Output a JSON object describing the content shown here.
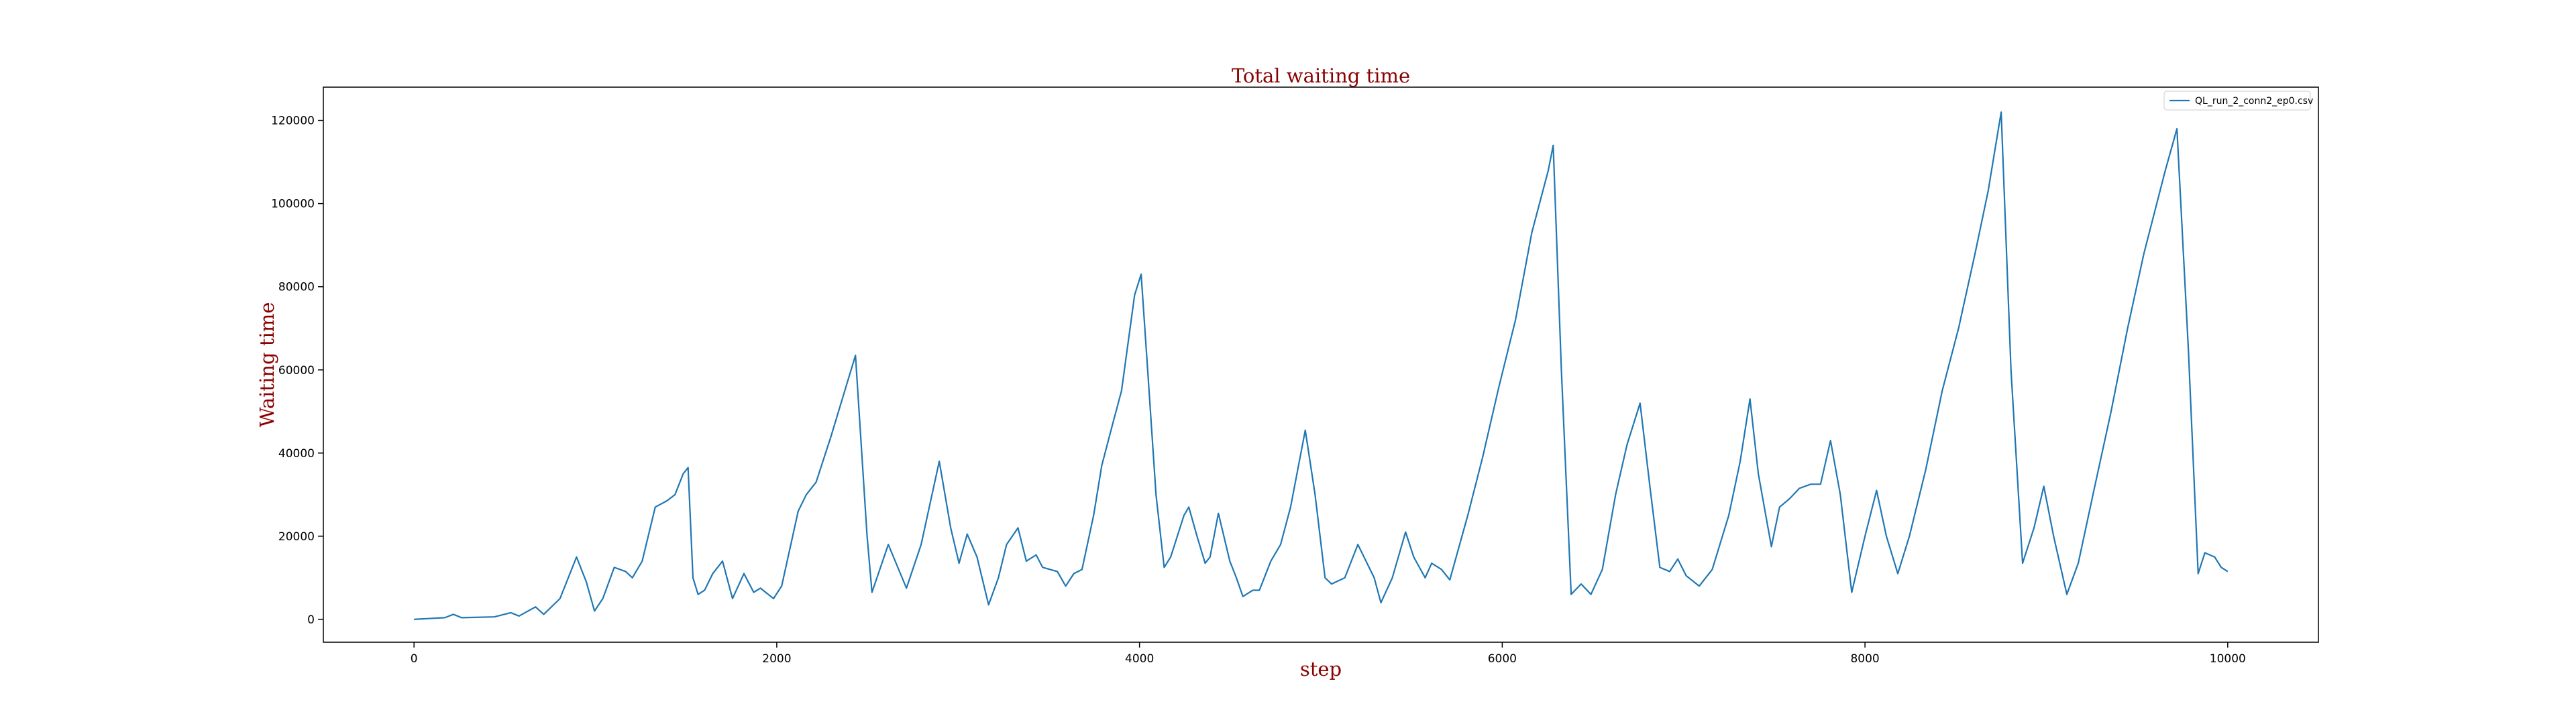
{
  "chart_data": {
    "type": "line",
    "title": "Total waiting time",
    "x_label": "step",
    "y_label": "Waiting time",
    "x": [
      0,
      170,
      217,
      262,
      443,
      534,
      579,
      670,
      715,
      805,
      896,
      950,
      995,
      1041,
      1104,
      1167,
      1204,
      1258,
      1330,
      1394,
      1439,
      1484,
      1511,
      1538,
      1566,
      1602,
      1647,
      1701,
      1756,
      1819,
      1873,
      1910,
      1982,
      2027,
      2118,
      2163,
      2217,
      2299,
      2434,
      2498,
      2525,
      2615,
      2715,
      2796,
      2896,
      2959,
      3005,
      3050,
      3104,
      3168,
      3222,
      3267,
      3330,
      3376,
      3430,
      3466,
      3547,
      3593,
      3638,
      3683,
      3747,
      3792,
      3846,
      3901,
      3973,
      4009,
      4045,
      4091,
      4136,
      4172,
      4245,
      4272,
      4317,
      4362,
      4389,
      4435,
      4498,
      4534,
      4570,
      4625,
      4661,
      4724,
      4778,
      4833,
      4914,
      4968,
      5023,
      5059,
      5132,
      5204,
      5294,
      5331,
      5394,
      5467,
      5512,
      5575,
      5611,
      5665,
      5711,
      5810,
      5892,
      5982,
      6073,
      6163,
      6254,
      6281,
      6326,
      6380,
      6435,
      6489,
      6552,
      6625,
      6688,
      6760,
      6814,
      6869,
      6923,
      6968,
      7014,
      7086,
      7158,
      7249,
      7312,
      7366,
      7412,
      7484,
      7529,
      7584,
      7638,
      7701,
      7755,
      7810,
      7864,
      7927,
      8000,
      8064,
      8118,
      8181,
      8245,
      8335,
      8426,
      8516,
      8607,
      8679,
      8751,
      8805,
      8869,
      8932,
      8986,
      9040,
      9113,
      9176,
      9267,
      9357,
      9448,
      9538,
      9656,
      9720,
      9783,
      9837,
      9874,
      9928,
      9964,
      10000
    ],
    "series": [
      {
        "name": "QL_run_2_conn2_ep0.csv",
        "color": "#1f77b4",
        "values": [
          0,
          400,
          1200,
          400,
          600,
          1600,
          800,
          3000,
          1200,
          5000,
          15000,
          9000,
          2000,
          5000,
          12500,
          11500,
          10000,
          14000,
          27000,
          28500,
          30000,
          35000,
          36500,
          10000,
          6000,
          7000,
          11000,
          14000,
          5000,
          11000,
          6500,
          7500,
          5000,
          8000,
          26000,
          30000,
          33000,
          44000,
          63500,
          20000,
          6500,
          18000,
          7500,
          18000,
          38000,
          22000,
          13500,
          20500,
          15000,
          3500,
          10000,
          18000,
          22000,
          14000,
          15500,
          12500,
          11500,
          8000,
          11000,
          12000,
          25000,
          37000,
          46000,
          55000,
          78000,
          83000,
          60000,
          30000,
          12500,
          15000,
          25000,
          27000,
          20000,
          13500,
          15000,
          25500,
          14000,
          10000,
          5500,
          7000,
          7000,
          14000,
          18000,
          27000,
          45500,
          30000,
          10000,
          8500,
          10000,
          18000,
          10000,
          4000,
          10000,
          21000,
          15000,
          10000,
          13500,
          12000,
          9500,
          25000,
          39000,
          56000,
          72000,
          93000,
          108000,
          114000,
          60000,
          6000,
          8500,
          6000,
          12000,
          30000,
          42000,
          52000,
          32000,
          12500,
          11500,
          14500,
          10500,
          8000,
          12000,
          25000,
          38000,
          53000,
          35000,
          17500,
          27000,
          29000,
          31500,
          32500,
          32500,
          43000,
          30000,
          6500,
          20000,
          31000,
          20000,
          11000,
          20000,
          36000,
          55000,
          70000,
          88000,
          103000,
          122000,
          60000,
          13500,
          22000,
          32000,
          20000,
          6000,
          13500,
          32000,
          50000,
          70000,
          88000,
          108000,
          118000,
          65000,
          11000,
          16000,
          15000,
          12500,
          11500
        ]
      }
    ],
    "xlim": [
      -500,
      10500
    ],
    "ylim": [
      -5500,
      128000
    ],
    "xticks": [
      0,
      2000,
      4000,
      6000,
      8000,
      10000
    ],
    "yticks": [
      0,
      20000,
      40000,
      60000,
      80000,
      100000,
      120000
    ],
    "grid": false,
    "legend": "upper-right"
  }
}
